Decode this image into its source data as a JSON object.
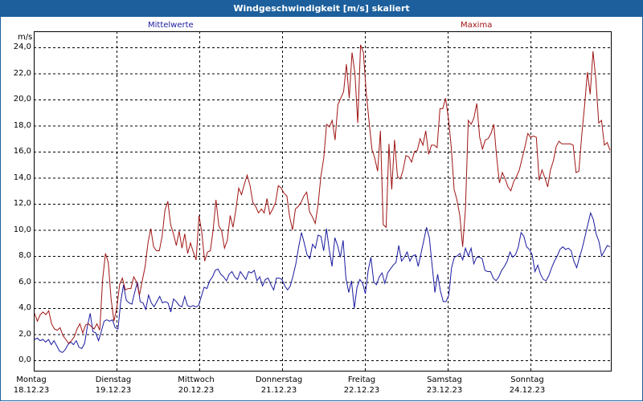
{
  "window": {
    "title": "Windgeschwindigkeit [m/s] skaliert"
  },
  "chart_data": {
    "type": "line",
    "title": "Windgeschwindigkeit [m/s] skaliert",
    "ylabel": "m/s",
    "xlabel": "",
    "ylim": [
      0,
      25.3
    ],
    "yticks": [
      "0,0",
      "2,0",
      "4,0",
      "6,0",
      "8,0",
      "10,0",
      "12,0",
      "14,0",
      "16,0",
      "18,0",
      "20,0",
      "22,0",
      "24,0"
    ],
    "grid": true,
    "legend": "top-center",
    "day_labels": [
      {
        "day": "Montag",
        "date": "18.12.23"
      },
      {
        "day": "Dienstag",
        "date": "19.12.23"
      },
      {
        "day": "Mittwoch",
        "date": "20.12.23"
      },
      {
        "day": "Donnerstag",
        "date": "21.12.23"
      },
      {
        "day": "Freitag",
        "date": "22.12.23"
      },
      {
        "day": "Samstag",
        "date": "23.12.23"
      },
      {
        "day": "Sonntag",
        "date": "24.12.23"
      }
    ],
    "series": [
      {
        "name": "Mittelwerte",
        "color": "#1a1aa0",
        "values": [
          1.6,
          1.7,
          1.5,
          1.6,
          1.4,
          1.6,
          1.2,
          1.5,
          1.1,
          0.7,
          0.6,
          0.8,
          1.2,
          1.4,
          1.2,
          1.5,
          1.0,
          0.9,
          1.3,
          2.6,
          3.6,
          2.2,
          2.1,
          1.5,
          2.2,
          3.0,
          3.1,
          3.0,
          3.1,
          2.5,
          2.4,
          4.5,
          5.8,
          4.6,
          4.4,
          4.3,
          5.2,
          6.0,
          4.5,
          4.4,
          3.9,
          5.0,
          4.4,
          4.1,
          4.5,
          4.9,
          4.4,
          4.5,
          4.4,
          3.7,
          4.7,
          4.5,
          4.2,
          4.1,
          4.9,
          4.2,
          4.1,
          4.2,
          4.1,
          4.2,
          4.9,
          5.6,
          5.5,
          6.1,
          6.4,
          6.9,
          7.0,
          6.6,
          6.4,
          6.1,
          6.6,
          6.8,
          6.4,
          6.2,
          6.8,
          6.5,
          6.2,
          6.8,
          6.7,
          6.9,
          6.1,
          6.4,
          5.7,
          6.2,
          6.3,
          5.8,
          5.4,
          6.3,
          6.3,
          6.2,
          5.7,
          5.4,
          5.7,
          6.5,
          7.4,
          8.7,
          9.8,
          9.0,
          8.1,
          7.8,
          8.9,
          8.6,
          9.6,
          9.5,
          8.4,
          10.1,
          8.5,
          7.2,
          9.4,
          8.8,
          7.9,
          9.2,
          6.3,
          5.2,
          6.1,
          4.0,
          5.6,
          6.2,
          5.9,
          5.1,
          6.9,
          7.9,
          6.0,
          5.8,
          6.4,
          6.7,
          5.9,
          6.7,
          7.0,
          7.3,
          7.5,
          8.8,
          7.6,
          7.9,
          8.3,
          7.6,
          8.0,
          8.1,
          7.2,
          8.2,
          9.2,
          10.2,
          9.4,
          7.3,
          5.2,
          6.6,
          5.3,
          4.5,
          4.5,
          5.0,
          7.1,
          7.9,
          8.0,
          8.2,
          7.7,
          8.6,
          8.0,
          8.6,
          7.4,
          7.9,
          7.9,
          7.8,
          6.9,
          6.8,
          6.8,
          6.3,
          6.1,
          6.4,
          6.9,
          7.2,
          7.6,
          8.3,
          7.9,
          8.1,
          8.7,
          9.8,
          9.5,
          8.7,
          8.5,
          8.1,
          6.8,
          7.3,
          6.6,
          6.2,
          6.1,
          6.5,
          7.1,
          7.6,
          8.0,
          8.5,
          8.7,
          8.5,
          8.6,
          8.4,
          7.6,
          7.1,
          7.9,
          8.6,
          9.5,
          10.4,
          11.3,
          10.8,
          9.7,
          9.1,
          8.0,
          8.4,
          8.8,
          8.7
        ]
      },
      {
        "name": "Maxima",
        "color": "#a01414",
        "values": [
          3.6,
          3.0,
          3.5,
          3.7,
          3.5,
          3.8,
          2.8,
          2.4,
          2.3,
          2.5,
          1.9,
          1.6,
          1.3,
          1.5,
          1.8,
          2.4,
          2.8,
          2.1,
          2.7,
          2.8,
          2.6,
          2.4,
          2.8,
          2.3,
          6.2,
          8.2,
          7.5,
          4.7,
          3.0,
          4.0,
          5.8,
          6.3,
          5.4,
          5.5,
          5.5,
          6.4,
          6.0,
          5.0,
          6.1,
          7.2,
          9.0,
          10.1,
          8.7,
          8.4,
          8.4,
          9.5,
          11.5,
          12.2,
          10.4,
          9.7,
          8.8,
          9.9,
          8.6,
          9.7,
          8.2,
          9.0,
          8.3,
          7.7,
          11.1,
          9.8,
          7.6,
          8.3,
          8.4,
          10.0,
          12.3,
          10.3,
          9.9,
          8.6,
          9.2,
          11.1,
          10.2,
          11.5,
          13.2,
          12.7,
          13.5,
          14.2,
          13.4,
          12.1,
          11.8,
          11.3,
          11.6,
          11.3,
          12.4,
          11.2,
          11.6,
          12.1,
          13.4,
          13.2,
          12.8,
          12.6,
          11.0,
          10.0,
          11.6,
          11.8,
          12.1,
          12.6,
          12.9,
          11.4,
          11.0,
          10.5,
          11.9,
          14.1,
          15.5,
          18.1,
          17.9,
          18.4,
          16.9,
          19.6,
          20.1,
          20.6,
          22.7,
          20.1,
          23.6,
          22.0,
          18.2,
          24.2,
          23.6,
          20.5,
          18.3,
          16.2,
          15.5,
          14.5,
          17.6,
          10.4,
          10.2,
          16.6,
          13.1,
          16.9,
          14.1,
          13.9,
          14.6,
          15.7,
          15.6,
          15.2,
          16.0,
          16.1,
          17.0,
          16.5,
          17.6,
          15.8,
          16.5,
          16.5,
          16.3,
          19.3,
          19.3,
          20.1,
          18.5,
          16.3,
          13.1,
          12.3,
          11.1,
          8.7,
          11.6,
          18.4,
          18.1,
          18.6,
          19.7,
          17.1,
          16.2,
          16.9,
          17.0,
          17.4,
          18.1,
          15.6,
          13.6,
          14.4,
          13.9,
          13.3,
          13.0,
          13.7,
          14.1,
          14.6,
          15.5,
          16.4,
          17.4,
          17.1,
          17.2,
          17.1,
          13.8,
          14.6,
          14.0,
          13.3,
          14.6,
          15.3,
          16.4,
          16.8,
          16.6,
          16.6,
          16.6,
          16.6,
          16.5,
          14.4,
          14.5,
          17.2,
          19.5,
          22.1,
          20.4,
          23.7,
          21.5,
          18.2,
          18.4,
          16.5,
          16.7,
          16.1
        ]
      }
    ]
  }
}
